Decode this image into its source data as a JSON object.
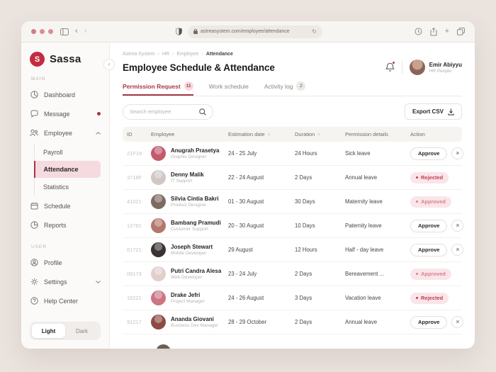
{
  "browser": {
    "url": "astreasystem.com/employee/attendance"
  },
  "sidebar": {
    "brand": "Sassa",
    "sections": {
      "main": "MAIN",
      "user": "USER"
    },
    "items": {
      "dashboard": "Dashboard",
      "message": "Message",
      "employee": "Employee",
      "payroll": "Payroll",
      "attendance": "Attendance",
      "statistics": "Statistics",
      "schedule": "Schedule",
      "reports": "Reports",
      "profile": "Profile",
      "settings": "Settings",
      "help": "Help Center"
    },
    "theme": {
      "light": "Light",
      "dark": "Dark"
    }
  },
  "header": {
    "breadcrumb": [
      "Astrea System",
      "HR",
      "Employee",
      "Attendance"
    ],
    "title": "Employee Schedule & Attendance",
    "user": {
      "name": "Emir Abiyyu",
      "role": "HR People"
    }
  },
  "tabs": [
    {
      "label": "Permission Request",
      "badge": "11"
    },
    {
      "label": "Work schedule",
      "badge": ""
    },
    {
      "label": "Activity log",
      "badge": "2"
    }
  ],
  "toolbar": {
    "search_placeholder": "Search employee",
    "export_label": "Export CSV"
  },
  "table": {
    "columns": [
      "ID",
      "Employee",
      "Estimation date",
      "Duration",
      "Permission details",
      "Action"
    ],
    "action_labels": {
      "approve": "Approve",
      "approved": "Approved",
      "rejected": "Rejected"
    },
    "rows": [
      {
        "id": "21F18",
        "name": "Anugrah Prasetya",
        "role": "Graphic Designer",
        "date": "24 - 25 July",
        "duration": "24 Hours",
        "permission": "Sick leave",
        "status": "pending",
        "avatar": "#c2596d"
      },
      {
        "id": "3718F",
        "name": "Denny Malik",
        "role": "IT Support",
        "date": "22 - 24 August",
        "duration": "2 Days",
        "permission": "Annual leave",
        "status": "rejected",
        "avatar": "#cfc8c4"
      },
      {
        "id": "41021",
        "name": "Silvia Cintia Bakri",
        "role": "Product Designer",
        "date": "01 - 30 August",
        "duration": "30 Days",
        "permission": "Maternity leave",
        "status": "approved",
        "avatar": "#7d6a63"
      },
      {
        "id": "12781",
        "name": "Bambang Pramudi",
        "role": "Customer Support",
        "date": "20 - 30 August",
        "duration": "10 Days",
        "permission": "Paternity leave",
        "status": "pending",
        "avatar": "#b5766c"
      },
      {
        "id": "61721",
        "name": "Joseph Stewart",
        "role": "Mobile Developer",
        "date": "29 August",
        "duration": "12 Hours",
        "permission": "Half - day leave",
        "status": "pending",
        "avatar": "#3a3332"
      },
      {
        "id": "09173",
        "name": "Putri Candra Alesa",
        "role": "Web Developer",
        "date": "23 - 24 July",
        "duration": "2 Days",
        "permission": "Bereavement ...",
        "status": "approved",
        "avatar": "#e0cfcb"
      },
      {
        "id": "19221",
        "name": "Drake Jefri",
        "role": "Project Manager",
        "date": "24 - 26 August",
        "duration": "3 Days",
        "permission": "Vacation leave",
        "status": "rejected",
        "avatar": "#cd7585"
      },
      {
        "id": "91217",
        "name": "Ananda Giovani",
        "role": "Business Dev Manager",
        "date": "28 - 29 October",
        "duration": "2 Days",
        "permission": "Annual leave",
        "status": "pending",
        "avatar": "#8d4a44"
      }
    ]
  },
  "colors": {
    "accent": "#a8354a",
    "brand_red": "#c22c41",
    "badge_bg": "#fae5e9",
    "approved_text": "#d9808d",
    "rejected_text": "#c23e50",
    "active_item_bg": "#f5dbe0",
    "canvas_bg": "#ebe3de"
  }
}
